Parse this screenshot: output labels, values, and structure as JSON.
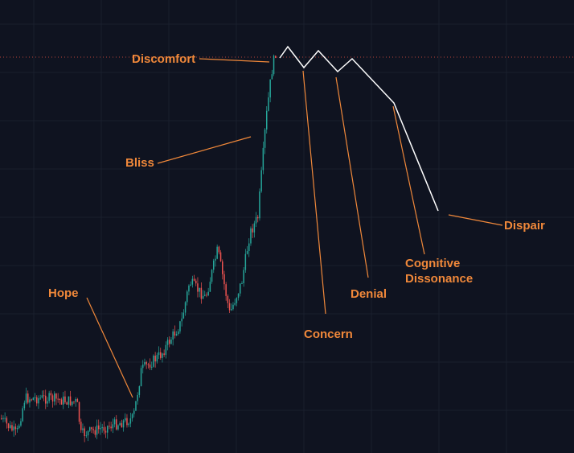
{
  "labels": [
    "Discomfort",
    "Bliss",
    "Hope",
    "Concern",
    "Denial",
    "Cognitive\nDissonance",
    "Dispair"
  ]
}
